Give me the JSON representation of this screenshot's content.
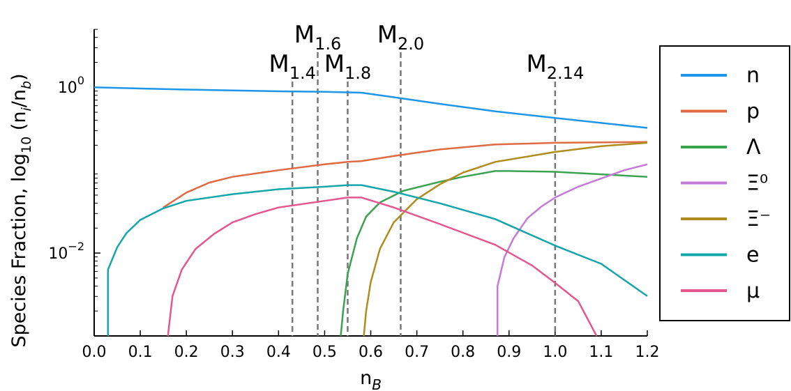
{
  "chart_data": {
    "type": "line",
    "ylabel_base": "Species Fraction, log",
    "ylabel_sub": "10",
    "ylabel_rest": " (n",
    "ylabel_sub_i": "i",
    "ylabel_mid": "/n",
    "ylabel_sub_b": "b",
    "ylabel_end": ")",
    "xlabel_base": "n",
    "xlabel_sub": "B",
    "x_scale": "linear",
    "y_scale": "log",
    "xlim": [
      0.0,
      1.2
    ],
    "ylim_log10": [
      -3.0,
      0.7
    ],
    "grid": false,
    "legend_position": "right",
    "x_ticks": [
      "0.0",
      "0.1",
      "0.2",
      "0.3",
      "0.4",
      "0.5",
      "0.6",
      "0.7",
      "0.8",
      "0.9",
      "1.0",
      "1.1",
      "1.2"
    ],
    "y_ticks": [
      {
        "value_log10": 0,
        "base": "10",
        "exp": "0"
      },
      {
        "value_log10": -2,
        "base": "10",
        "exp": "−2"
      }
    ],
    "mass_markers": [
      {
        "x": 0.43,
        "base": "M",
        "sub": "1.4"
      },
      {
        "x": 0.485,
        "base": "M",
        "sub": "1.6"
      },
      {
        "x": 0.55,
        "base": "M",
        "sub": "1.8"
      },
      {
        "x": 0.665,
        "base": "M",
        "sub": "2.0"
      },
      {
        "x": 1.0,
        "base": "M",
        "sub": "2.14"
      }
    ],
    "series": [
      {
        "name": "n",
        "color": "#1e96e8",
        "points": [
          [
            0.0,
            0.0
          ],
          [
            0.1,
            -0.015
          ],
          [
            0.2,
            -0.027
          ],
          [
            0.3,
            -0.038
          ],
          [
            0.4,
            -0.048
          ],
          [
            0.5,
            -0.055
          ],
          [
            0.58,
            -0.065
          ],
          [
            0.65,
            -0.12
          ],
          [
            0.75,
            -0.2
          ],
          [
            0.87,
            -0.29
          ],
          [
            1.0,
            -0.37
          ],
          [
            1.1,
            -0.43
          ],
          [
            1.2,
            -0.49
          ]
        ]
      },
      {
        "name": "p",
        "color": "#e06a43",
        "points": [
          [
            0.15,
            -1.45
          ],
          [
            0.2,
            -1.27
          ],
          [
            0.25,
            -1.15
          ],
          [
            0.3,
            -1.08
          ],
          [
            0.4,
            -1.0
          ],
          [
            0.5,
            -0.93
          ],
          [
            0.55,
            -0.9
          ],
          [
            0.58,
            -0.89
          ],
          [
            0.65,
            -0.83
          ],
          [
            0.75,
            -0.75
          ],
          [
            0.87,
            -0.69
          ],
          [
            1.0,
            -0.67
          ],
          [
            1.2,
            -0.66
          ]
        ]
      },
      {
        "name": "Λ",
        "color": "#3aa350",
        "points": [
          [
            0.535,
            -3.0
          ],
          [
            0.54,
            -2.7
          ],
          [
            0.55,
            -2.25
          ],
          [
            0.57,
            -1.82
          ],
          [
            0.59,
            -1.56
          ],
          [
            0.62,
            -1.39
          ],
          [
            0.67,
            -1.25
          ],
          [
            0.75,
            -1.14
          ],
          [
            0.8,
            -1.08
          ],
          [
            0.87,
            -1.01
          ],
          [
            0.9,
            -1.01
          ],
          [
            1.0,
            -1.02
          ],
          [
            1.1,
            -1.05
          ],
          [
            1.2,
            -1.08
          ]
        ]
      },
      {
        "name": "Ξ⁰",
        "color": "#c57ad8",
        "points": [
          [
            0.875,
            -3.0
          ],
          [
            0.875,
            -2.4
          ],
          [
            0.89,
            -2.05
          ],
          [
            0.91,
            -1.82
          ],
          [
            0.94,
            -1.58
          ],
          [
            0.97,
            -1.44
          ],
          [
            1.0,
            -1.33
          ],
          [
            1.05,
            -1.2
          ],
          [
            1.1,
            -1.1
          ],
          [
            1.15,
            -1.0
          ],
          [
            1.2,
            -0.93
          ]
        ]
      },
      {
        "name": "Ξ⁻",
        "color": "#b08c1e",
        "points": [
          [
            0.585,
            -3.0
          ],
          [
            0.59,
            -2.7
          ],
          [
            0.6,
            -2.35
          ],
          [
            0.62,
            -1.95
          ],
          [
            0.65,
            -1.63
          ],
          [
            0.7,
            -1.35
          ],
          [
            0.75,
            -1.17
          ],
          [
            0.8,
            -1.03
          ],
          [
            0.87,
            -0.9
          ],
          [
            1.0,
            -0.78
          ],
          [
            1.1,
            -0.71
          ],
          [
            1.2,
            -0.67
          ]
        ]
      },
      {
        "name": "e",
        "color": "#14a6aa",
        "points": [
          [
            0.03,
            -3.0
          ],
          [
            0.03,
            -2.2
          ],
          [
            0.05,
            -1.93
          ],
          [
            0.07,
            -1.76
          ],
          [
            0.1,
            -1.6
          ],
          [
            0.15,
            -1.46
          ],
          [
            0.2,
            -1.37
          ],
          [
            0.3,
            -1.29
          ],
          [
            0.4,
            -1.23
          ],
          [
            0.5,
            -1.2
          ],
          [
            0.55,
            -1.18
          ],
          [
            0.58,
            -1.18
          ],
          [
            0.65,
            -1.26
          ],
          [
            0.75,
            -1.4
          ],
          [
            0.87,
            -1.59
          ],
          [
            1.0,
            -1.91
          ],
          [
            1.1,
            -2.13
          ],
          [
            1.2,
            -2.52
          ]
        ]
      },
      {
        "name": "μ",
        "color": "#e4578f",
        "points": [
          [
            0.16,
            -3.0
          ],
          [
            0.17,
            -2.52
          ],
          [
            0.19,
            -2.2
          ],
          [
            0.22,
            -1.95
          ],
          [
            0.26,
            -1.77
          ],
          [
            0.3,
            -1.63
          ],
          [
            0.35,
            -1.53
          ],
          [
            0.4,
            -1.45
          ],
          [
            0.5,
            -1.37
          ],
          [
            0.55,
            -1.33
          ],
          [
            0.58,
            -1.33
          ],
          [
            0.65,
            -1.45
          ],
          [
            0.75,
            -1.65
          ],
          [
            0.87,
            -1.9
          ],
          [
            0.95,
            -2.15
          ],
          [
            1.0,
            -2.36
          ],
          [
            1.05,
            -2.58
          ],
          [
            1.09,
            -3.0
          ]
        ]
      }
    ]
  }
}
